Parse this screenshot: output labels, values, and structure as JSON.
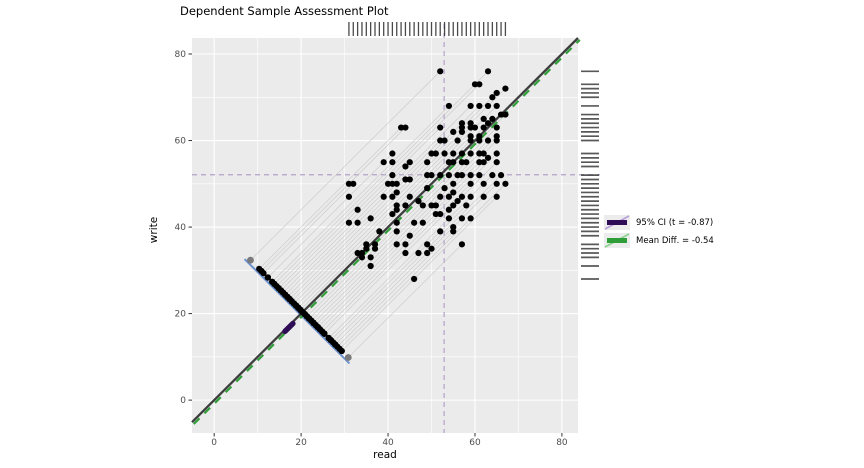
{
  "chart_data": {
    "type": "scatter",
    "title": "Dependent Sample Assessment Plot",
    "xlabel": "read",
    "ylabel": "write",
    "x_ticks": [
      0,
      20,
      40,
      60,
      80
    ],
    "y_ticks": [
      0,
      20,
      40,
      60,
      80
    ],
    "xlim": [
      -5.1,
      83.7
    ],
    "ylim": [
      -7.6,
      83.7
    ],
    "grid": "major-white-minor-white-on-gray-panel",
    "legend_position": "right-middle",
    "points": [
      [
        52,
        76
      ],
      [
        63,
        76
      ],
      [
        60,
        73
      ],
      [
        61,
        73
      ],
      [
        67,
        72
      ],
      [
        65,
        71
      ],
      [
        64,
        70
      ],
      [
        54,
        68
      ],
      [
        59,
        68
      ],
      [
        61,
        68
      ],
      [
        63,
        68
      ],
      [
        65,
        68
      ],
      [
        66,
        66
      ],
      [
        67,
        66
      ],
      [
        62,
        65
      ],
      [
        64,
        65
      ],
      [
        57,
        64
      ],
      [
        59,
        64
      ],
      [
        63,
        64
      ],
      [
        43,
        63
      ],
      [
        44,
        63
      ],
      [
        52,
        63
      ],
      [
        57,
        63
      ],
      [
        59,
        63
      ],
      [
        60,
        63
      ],
      [
        62,
        63
      ],
      [
        65,
        63
      ],
      [
        55,
        62
      ],
      [
        57,
        62
      ],
      [
        59,
        61
      ],
      [
        61,
        61
      ],
      [
        65,
        61
      ],
      [
        52,
        60
      ],
      [
        53,
        60
      ],
      [
        56,
        60
      ],
      [
        59,
        60
      ],
      [
        61,
        60
      ],
      [
        63,
        60
      ],
      [
        65,
        60
      ],
      [
        41,
        57
      ],
      [
        50,
        57
      ],
      [
        51,
        57
      ],
      [
        53,
        57
      ],
      [
        55,
        57
      ],
      [
        57,
        57
      ],
      [
        59,
        57
      ],
      [
        61,
        57
      ],
      [
        62,
        57
      ],
      [
        65,
        57
      ],
      [
        63,
        56
      ],
      [
        39,
        55
      ],
      [
        41,
        55
      ],
      [
        45,
        55
      ],
      [
        49,
        55
      ],
      [
        54,
        55
      ],
      [
        55,
        55
      ],
      [
        57,
        55
      ],
      [
        58,
        55
      ],
      [
        61,
        55
      ],
      [
        62,
        55
      ],
      [
        65,
        55
      ],
      [
        44,
        54
      ],
      [
        41,
        52
      ],
      [
        49,
        52
      ],
      [
        50,
        52
      ],
      [
        52,
        52
      ],
      [
        54,
        52
      ],
      [
        56,
        52
      ],
      [
        57,
        52
      ],
      [
        59,
        52
      ],
      [
        61,
        52
      ],
      [
        64,
        52
      ],
      [
        66,
        52
      ],
      [
        44,
        51
      ],
      [
        45,
        51
      ],
      [
        31,
        50
      ],
      [
        32,
        50
      ],
      [
        40,
        50
      ],
      [
        41,
        50
      ],
      [
        42,
        50
      ],
      [
        55,
        50
      ],
      [
        59,
        50
      ],
      [
        62,
        50
      ],
      [
        65,
        50
      ],
      [
        67,
        50
      ],
      [
        49,
        49
      ],
      [
        53,
        49
      ],
      [
        42,
        48
      ],
      [
        55,
        48
      ],
      [
        31,
        47
      ],
      [
        39,
        47
      ],
      [
        41,
        47
      ],
      [
        45,
        47
      ],
      [
        52,
        47
      ],
      [
        54,
        47
      ],
      [
        57,
        47
      ],
      [
        59,
        47
      ],
      [
        62,
        47
      ],
      [
        65,
        47
      ],
      [
        47,
        46
      ],
      [
        56,
        46
      ],
      [
        42,
        45
      ],
      [
        44,
        45
      ],
      [
        48,
        45
      ],
      [
        50,
        45
      ],
      [
        51,
        45
      ],
      [
        55,
        45
      ],
      [
        58,
        45
      ],
      [
        33,
        44
      ],
      [
        42,
        44
      ],
      [
        54,
        44
      ],
      [
        41,
        43
      ],
      [
        51,
        43
      ],
      [
        52,
        43
      ],
      [
        36,
        42
      ],
      [
        54,
        42
      ],
      [
        57,
        42
      ],
      [
        59,
        42
      ],
      [
        31,
        41
      ],
      [
        33,
        41
      ],
      [
        42,
        41
      ],
      [
        46,
        41
      ],
      [
        48,
        41
      ],
      [
        55,
        40
      ],
      [
        38,
        39
      ],
      [
        42,
        39
      ],
      [
        52,
        39
      ],
      [
        55,
        39
      ],
      [
        45,
        38
      ],
      [
        35,
        36
      ],
      [
        37,
        36
      ],
      [
        42,
        36
      ],
      [
        44,
        36
      ],
      [
        49,
        36
      ],
      [
        57,
        36
      ],
      [
        35,
        35
      ],
      [
        37,
        35
      ],
      [
        50,
        35
      ],
      [
        33,
        34
      ],
      [
        34,
        34
      ],
      [
        44,
        34
      ],
      [
        47,
        34
      ],
      [
        49,
        34
      ],
      [
        34,
        33
      ],
      [
        36,
        33
      ],
      [
        36,
        31
      ],
      [
        46,
        28
      ]
    ],
    "x_mean_dashed_line": 52.9,
    "y_mean_dashed_line": 52.1,
    "identity_line": "y = x",
    "mean_diff_line_offset": -0.54,
    "difference_axis": {
      "sum_const": 40.7,
      "d_min": -24,
      "d_max": 21
    },
    "ci_segment": {
      "x1": 16.3,
      "y1": 15.9,
      "x2": 18.1,
      "y2": 17.7
    },
    "stats": {
      "t": -0.87,
      "mean_diff": -0.54
    },
    "legend": [
      {
        "label": "95% CI (t = -0.87)",
        "bar_color": "#2f0c56",
        "diag_color": "#b79fd8"
      },
      {
        "label": "Mean Diff. = -0.54",
        "bar_color": "#2f9e38",
        "diag_color": "#8fd18f"
      }
    ],
    "rug_x": [
      31,
      32,
      33,
      34,
      35,
      36,
      37,
      38,
      39,
      40,
      41,
      42,
      43,
      44,
      45,
      46,
      47,
      48,
      49,
      50,
      51,
      52,
      53,
      54,
      55,
      56,
      57,
      58,
      59,
      60,
      61,
      62,
      63,
      64,
      65,
      66,
      67
    ],
    "rug_y": [
      28,
      31,
      33,
      34,
      35,
      36,
      38,
      39,
      40,
      41,
      42,
      43,
      44,
      45,
      46,
      47,
      48,
      49,
      50,
      51,
      52,
      54,
      55,
      56,
      57,
      60,
      61,
      62,
      63,
      64,
      65,
      66,
      68,
      70,
      71,
      72,
      73,
      76
    ]
  },
  "colors": {
    "panel_bg": "#ebebeb",
    "grid": "#ffffff",
    "point": "#000000",
    "identity_line": "#3d3d3d",
    "mean_diff_line": "#2f9e38",
    "ci": "#2f0c56",
    "crosshair_dashed": "#b2a2c8",
    "connector": "#c2c2c2",
    "extreme_point": "#7a7a7a",
    "range_segment_blue": "#6d92cf",
    "rug": "#1f1f1f",
    "rug_right": "#3c3c3c",
    "tick": "#333333",
    "tick_label": "#4d4d4d",
    "axis_title": "#000000"
  }
}
